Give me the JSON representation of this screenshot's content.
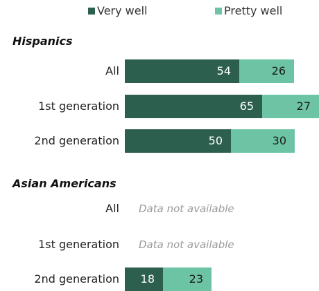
{
  "chart_data": {
    "type": "bar",
    "orientation": "horizontal",
    "stacked": true,
    "legend": [
      {
        "name": "Very well",
        "color": "#2d5f4f"
      },
      {
        "name": "Pretty well",
        "color": "#6cc4a4"
      }
    ],
    "groups": [
      {
        "title": "Hispanics",
        "rows": [
          {
            "label": "All",
            "values": [
              54,
              26
            ]
          },
          {
            "label": "1st generation",
            "values": [
              65,
              27
            ]
          },
          {
            "label": "2nd generation",
            "values": [
              50,
              30
            ]
          }
        ]
      },
      {
        "title": "Asian Americans",
        "rows": [
          {
            "label": "All",
            "values": null,
            "note": "Data not available"
          },
          {
            "label": "1st generation",
            "values": null,
            "note": "Data not available"
          },
          {
            "label": "2nd generation",
            "values": [
              18,
              23
            ]
          }
        ]
      }
    ]
  }
}
